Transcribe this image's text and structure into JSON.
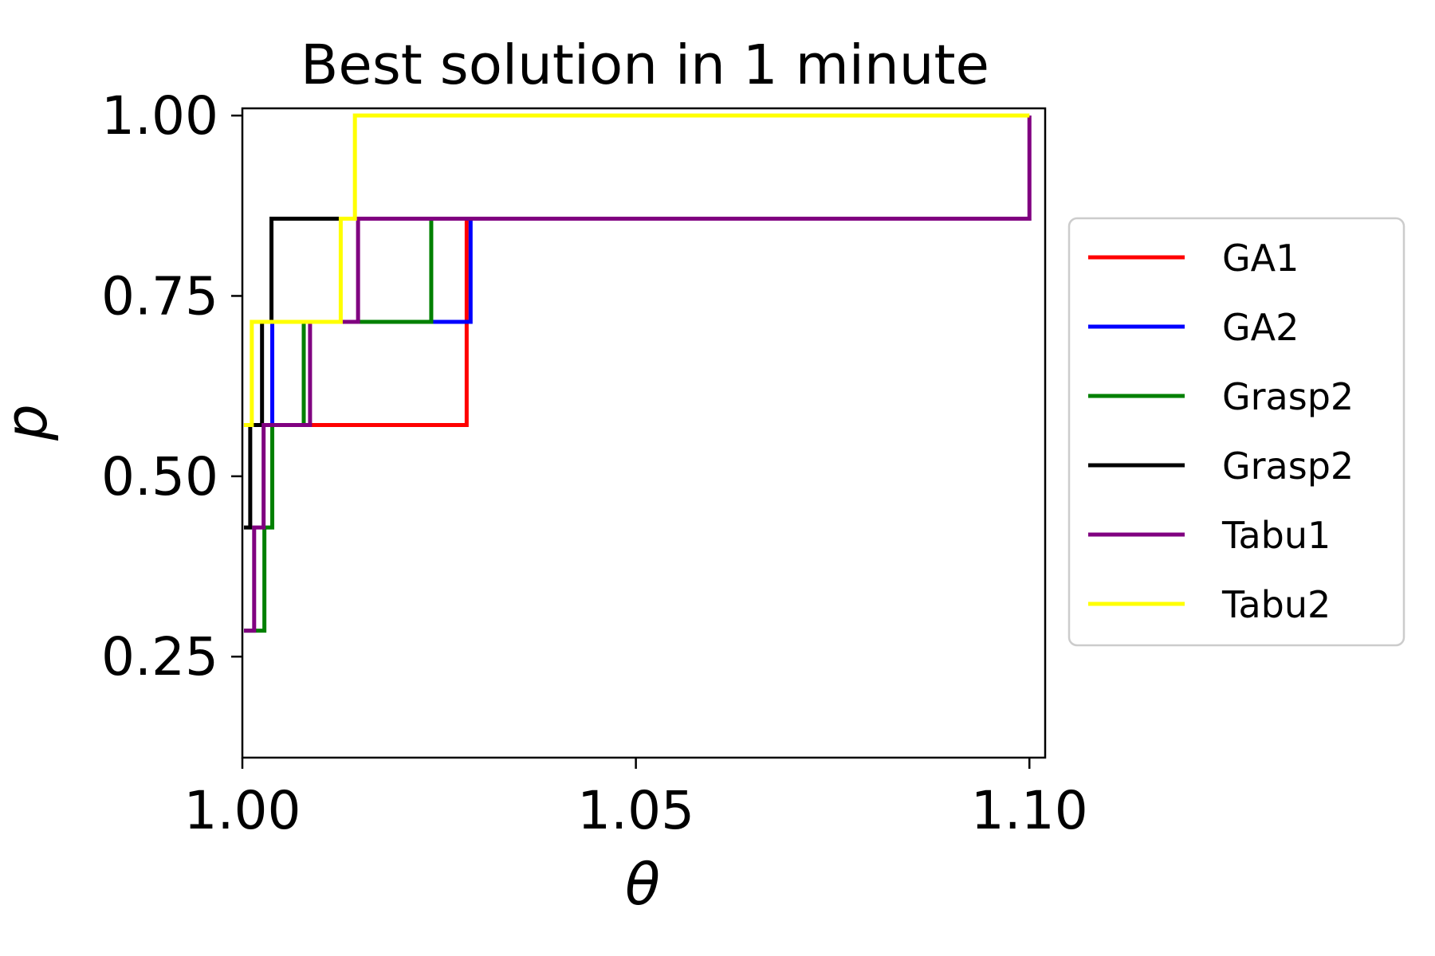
{
  "chart_data": {
    "type": "line",
    "title": "Best solution in 1 minute",
    "xlabel": "θ",
    "ylabel": "p",
    "xlim": [
      1.0,
      1.102
    ],
    "ylim": [
      0.11,
      1.01
    ],
    "xticks": [
      1.0,
      1.05,
      1.1
    ],
    "xtick_labels": [
      "1.00",
      "1.05",
      "1.10"
    ],
    "yticks": [
      0.25,
      0.5,
      0.75,
      1.0
    ],
    "ytick_labels": [
      "0.25",
      "0.50",
      "0.75",
      "1.00"
    ],
    "grid": false,
    "legend_position": "outside-right",
    "step": "post",
    "series": [
      {
        "name": "GA1",
        "color": "#ff0000",
        "x": [
          1.0002,
          1.0028,
          1.0085,
          1.0285,
          1.0285,
          1.1
        ],
        "y": [
          0.571,
          0.571,
          0.571,
          0.571,
          0.857,
          0.857
        ]
      },
      {
        "name": "GA2",
        "color": "#0000ff",
        "x": [
          1.0002,
          1.0038,
          1.029,
          1.029,
          1.1
        ],
        "y": [
          0.571,
          0.714,
          0.714,
          0.857,
          0.857
        ]
      },
      {
        "name": "Grasp2",
        "color": "#008000",
        "x": [
          1.0002,
          1.0028,
          1.0038,
          1.0078,
          1.024,
          1.1
        ],
        "y": [
          0.286,
          0.429,
          0.571,
          0.714,
          0.857,
          0.857
        ]
      },
      {
        "name": "Grasp2",
        "color": "#000000",
        "x": [
          1.0002,
          1.001,
          1.0025,
          1.0037,
          1.1
        ],
        "y": [
          0.429,
          0.571,
          0.714,
          0.857,
          0.857
        ]
      },
      {
        "name": "Tabu1",
        "color": "#800080",
        "x": [
          1.0002,
          1.0015,
          1.0027,
          1.0086,
          1.0147,
          1.1,
          1.1
        ],
        "y": [
          0.286,
          0.429,
          0.571,
          0.714,
          0.857,
          0.857,
          1.0
        ]
      },
      {
        "name": "Tabu2",
        "color": "#ffff00",
        "x": [
          1.0002,
          1.0012,
          1.0125,
          1.0143,
          1.1
        ],
        "y": [
          0.571,
          0.714,
          0.857,
          1.0,
          1.0
        ]
      }
    ]
  }
}
